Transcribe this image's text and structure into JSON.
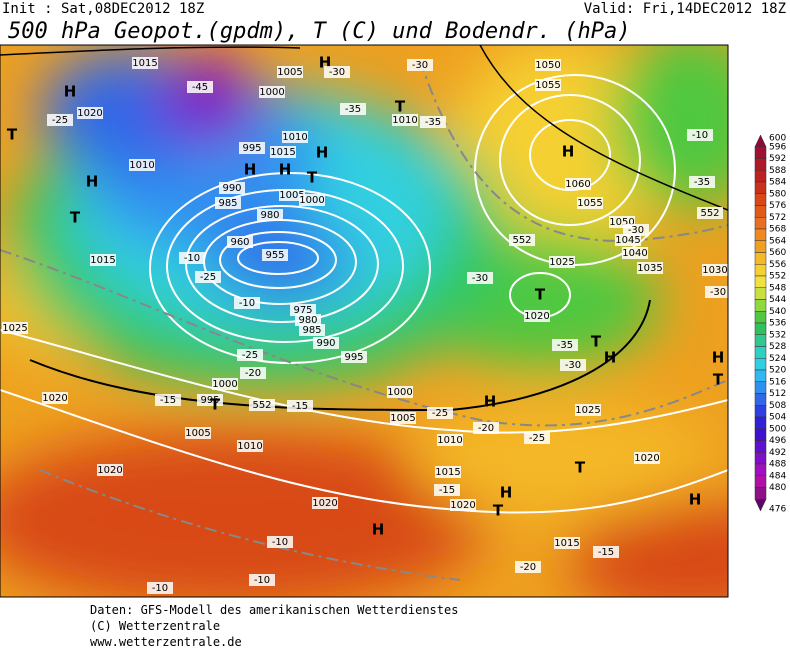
{
  "header": {
    "init": "Init : Sat,08DEC2012 18Z",
    "valid": "Valid: Fri,14DEC2012 18Z",
    "title": "500 hPa Geopot.(gpdm), T (C) und Bodendr. (hPa)"
  },
  "colorbar": {
    "values": [
      600,
      596,
      592,
      588,
      584,
      580,
      576,
      572,
      568,
      564,
      560,
      556,
      552,
      548,
      544,
      540,
      536,
      532,
      528,
      524,
      520,
      516,
      512,
      508,
      504,
      500,
      496,
      492,
      488,
      484,
      480,
      476
    ],
    "colors": [
      "#8b0a3a",
      "#a01030",
      "#b01a28",
      "#c02020",
      "#cc3018",
      "#d84818",
      "#e05a18",
      "#e87020",
      "#ee8a20",
      "#f0a020",
      "#f4b828",
      "#f6d030",
      "#f0e040",
      "#c8e040",
      "#90d840",
      "#50c840",
      "#30c060",
      "#30c890",
      "#30d0c0",
      "#30d0e0",
      "#30b8f0",
      "#3090f0",
      "#3068e8",
      "#3040e0",
      "#3020d8",
      "#4010d0",
      "#6010d0",
      "#8010c8",
      "#a010c0",
      "#b010a8",
      "#901088",
      "#600868"
    ]
  },
  "map_labels": [
    "1015",
    "1005",
    "1000",
    "1020",
    "H",
    "T",
    "H",
    "1010",
    "995",
    "1015",
    "1010",
    "H",
    "T",
    "990",
    "985",
    "1005",
    "1000",
    "980",
    "955",
    "960",
    "975",
    "980",
    "985",
    "990",
    "995",
    "1000",
    "1005",
    "1010",
    "1015",
    "1020",
    "1015",
    "1020",
    "1020",
    "1020",
    "1025",
    "1015",
    "T",
    "1000",
    "995",
    "1005",
    "1010",
    "T",
    "H",
    "T",
    "1010",
    "1050",
    "1055",
    "H",
    "1060",
    "1055",
    "1050",
    "1045",
    "1040",
    "1035",
    "1030",
    "1025",
    "T",
    "1020",
    "H",
    "T",
    "1025",
    "1020",
    "H",
    "H",
    "H",
    "T",
    "T",
    "H",
    "H",
    "T",
    "-45",
    "-35",
    "-30",
    "-30",
    "-35",
    "-25",
    "-10",
    "-35",
    "-30",
    "-30",
    "-35",
    "-30",
    "-25",
    "-20",
    "-15",
    "-15",
    "-25",
    "-20",
    "-25",
    "-15",
    "-20",
    "-15",
    "-10",
    "-10",
    "-10",
    "-10",
    "-25",
    "-10",
    "-30",
    "552",
    "552",
    "552",
    "H",
    "H"
  ],
  "footer": [
    "Daten: GFS-Modell des amerikanischen Wetterdienstes",
    "(C) Wetterzentrale",
    "www.wetterzentrale.de"
  ]
}
